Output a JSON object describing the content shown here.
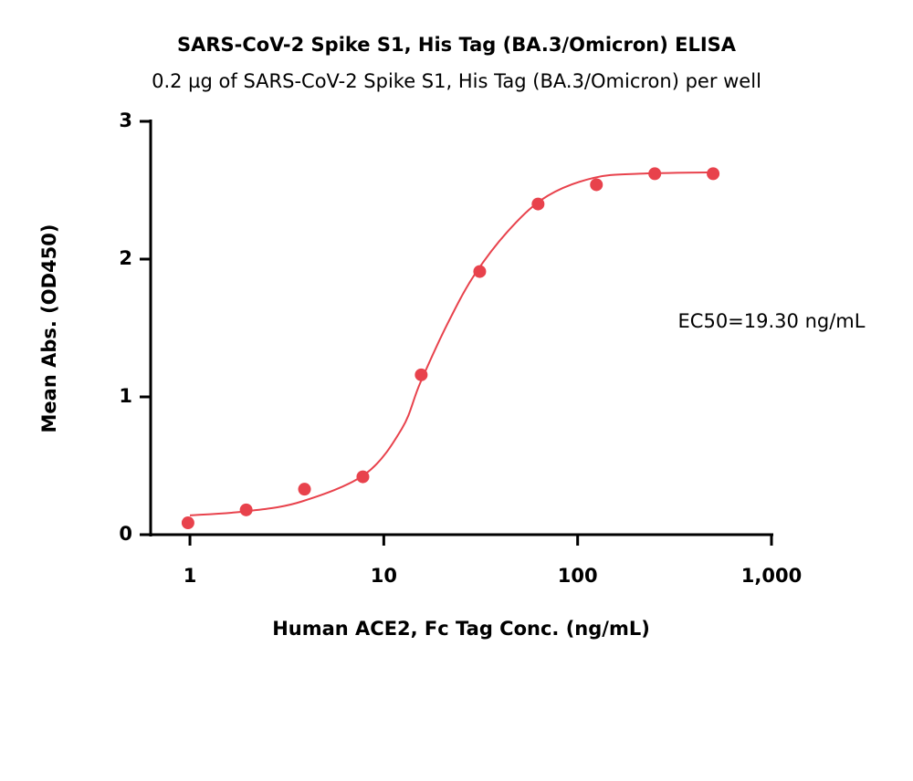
{
  "chart_data": {
    "type": "scatter",
    "title": "SARS-CoV-2 Spike S1, His Tag (BA.3/Omicron) ELISA",
    "subtitle": "0.2 µg of SARS-CoV-2 Spike S1, His Tag (BA.3/Omicron) per well",
    "x_label": "Human ACE2, Fc Tag Conc. (ng/mL)",
    "y_label": "Mean Abs. (OD450)",
    "annotation": "EC50=19.30 ng/mL",
    "color": "#e8424c",
    "log_x": true,
    "xlim": [
      0.627,
      1000
    ],
    "xticks": [
      1,
      10,
      100,
      {
        "value": 1000,
        "label": "1,000"
      }
    ],
    "ylim": [
      0,
      3
    ],
    "yticks": [
      0,
      1,
      2,
      3
    ],
    "points": {
      "x": [
        0.977,
        1.95,
        3.9,
        7.8,
        15.6,
        31.25,
        62.5,
        125,
        250,
        500
      ],
      "values": [
        0.086,
        0.18,
        0.33,
        0.42,
        1.16,
        1.91,
        2.4,
        2.54,
        2.62,
        2.62
      ]
    },
    "fit": {
      "x": [
        1,
        1.96,
        3.76,
        8.02,
        12.4,
        15.4,
        21.3,
        29.5,
        45.5,
        70.2,
        121,
        208,
        495
      ],
      "values": [
        0.14,
        0.17,
        0.24,
        0.44,
        0.77,
        1.1,
        1.53,
        1.89,
        2.23,
        2.46,
        2.59,
        2.62,
        2.63
      ]
    }
  }
}
